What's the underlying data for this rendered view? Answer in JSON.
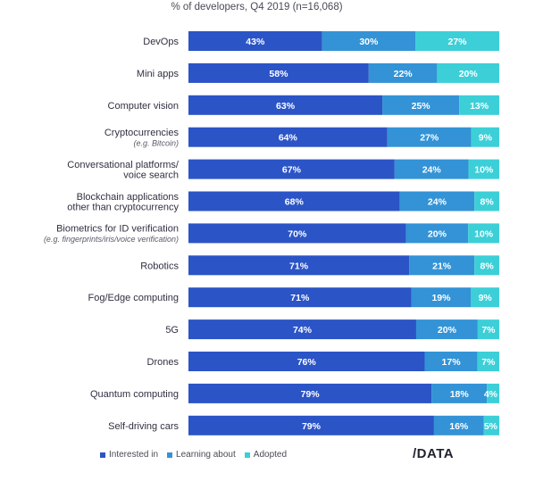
{
  "subtitle": "% of developers, Q4 2019 (n=16,068)",
  "logo_text": "/DATA",
  "colors": {
    "interested": "#2b54c6",
    "learning": "#3393d6",
    "adopted": "#3ccfd8"
  },
  "chart_data": {
    "type": "bar",
    "orientation": "horizontal",
    "stacked": true,
    "subtitle": "% of developers, Q4 2019 (n=16,068)",
    "legend_position": "bottom-left",
    "categories": [
      {
        "label": [
          "DevOps"
        ],
        "sublabel": ""
      },
      {
        "label": [
          "Mini apps"
        ],
        "sublabel": ""
      },
      {
        "label": [
          "Computer vision"
        ],
        "sublabel": ""
      },
      {
        "label": [
          "Cryptocurrencies"
        ],
        "sublabel": "(e.g. Bitcoin)"
      },
      {
        "label": [
          "Conversational platforms/",
          "voice search"
        ],
        "sublabel": ""
      },
      {
        "label": [
          "Blockchain applications",
          "other than cryptocurrency"
        ],
        "sublabel": ""
      },
      {
        "label": [
          "Biometrics for ID verification"
        ],
        "sublabel": "(e.g. fingerprints/iris/voice verification)"
      },
      {
        "label": [
          "Robotics"
        ],
        "sublabel": ""
      },
      {
        "label": [
          "Fog/Edge computing"
        ],
        "sublabel": ""
      },
      {
        "label": [
          "5G"
        ],
        "sublabel": ""
      },
      {
        "label": [
          "Drones"
        ],
        "sublabel": ""
      },
      {
        "label": [
          "Quantum computing"
        ],
        "sublabel": ""
      },
      {
        "label": [
          "Self-driving cars"
        ],
        "sublabel": ""
      }
    ],
    "series": [
      {
        "name": "Interested in",
        "color": "#2b54c6",
        "values": [
          43,
          58,
          63,
          64,
          67,
          68,
          70,
          71,
          71,
          74,
          76,
          79,
          79
        ]
      },
      {
        "name": "Learning about",
        "color": "#3393d6",
        "values": [
          30,
          22,
          25,
          27,
          24,
          24,
          20,
          21,
          19,
          20,
          17,
          18,
          16
        ]
      },
      {
        "name": "Adopted",
        "color": "#3ccfd8",
        "values": [
          27,
          20,
          13,
          9,
          10,
          8,
          10,
          8,
          9,
          7,
          7,
          4,
          5
        ]
      }
    ]
  }
}
